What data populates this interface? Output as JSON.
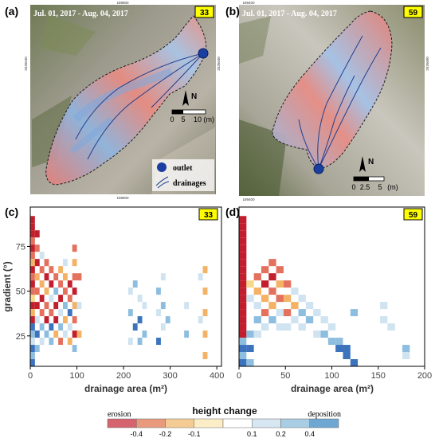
{
  "panels": {
    "a": {
      "letter": "(a)",
      "date": "Jul. 01, 2017 - Aug. 04, 2017",
      "badge": "33",
      "coord_top": "189800",
      "coord_bottom": "189800",
      "coord_left": "2535640",
      "coord_right": "2535640",
      "north": "N",
      "scale_ticks": [
        "0",
        "5",
        "10 (m)"
      ],
      "legend": {
        "outlet": "outlet",
        "drainages": "drainages"
      }
    },
    "b": {
      "letter": "(b)",
      "date": "Jul. 01, 2017 - Aug. 04, 2017",
      "badge": "59",
      "coord_top": "189400",
      "coord_bottom": "189400",
      "coord_right": "2535600",
      "north": "N",
      "scale_ticks": [
        "0",
        "2.5",
        "5",
        "(m)"
      ]
    }
  },
  "colors": {
    "badge_fill": "#ffff00",
    "outlet": "#1a3fa0",
    "erosion_dark": "#b2182b",
    "deposition_dark": "#2166ac"
  },
  "colorbar": {
    "title": "height change",
    "left_label": "erosion",
    "right_label": "deposition",
    "ticks": [
      "-0.4",
      "-0.2",
      "-0.1",
      "0.1",
      "0.2",
      "0.4"
    ],
    "bins": [
      {
        "color": "#d6646e"
      },
      {
        "color": "#e99a7d"
      },
      {
        "color": "#f4cc93"
      },
      {
        "color": "#fbeec7"
      },
      {
        "color": "#ffffff"
      },
      {
        "color": "#d6e7f2"
      },
      {
        "color": "#a9cde3"
      },
      {
        "color": "#6fa7d3"
      }
    ]
  },
  "chart_data": [
    {
      "type": "heatmap",
      "panel": "(c)",
      "badge": "33",
      "xlabel": "drainage area (m²)",
      "ylabel": "gradient (°)",
      "xlim": [
        0,
        410
      ],
      "ylim": [
        8,
        97
      ],
      "xticks": [
        "0",
        "100",
        "200",
        "300",
        "400"
      ],
      "yticks": [
        "25",
        "50",
        "75"
      ],
      "bin_width": 10,
      "bin_height": 4,
      "cells": [
        {
          "x": 0,
          "y": 88,
          "c": 0
        },
        {
          "x": 0,
          "y": 84,
          "c": 0
        },
        {
          "x": 0,
          "y": 80,
          "c": 0
        },
        {
          "x": 0,
          "y": 76,
          "c": 1
        },
        {
          "x": 0,
          "y": 72,
          "c": 0
        },
        {
          "x": 0,
          "y": 68,
          "c": 1
        },
        {
          "x": 0,
          "y": 64,
          "c": 2
        },
        {
          "x": 0,
          "y": 60,
          "c": 0
        },
        {
          "x": 0,
          "y": 56,
          "c": 1
        },
        {
          "x": 0,
          "y": 52,
          "c": 0
        },
        {
          "x": 0,
          "y": 48,
          "c": 1
        },
        {
          "x": 0,
          "y": 44,
          "c": 3
        },
        {
          "x": 0,
          "y": 40,
          "c": 0
        },
        {
          "x": 0,
          "y": 36,
          "c": 2
        },
        {
          "x": 0,
          "y": 32,
          "c": 0
        },
        {
          "x": 0,
          "y": 28,
          "c": 7
        },
        {
          "x": 0,
          "y": 24,
          "c": 6
        },
        {
          "x": 0,
          "y": 20,
          "c": 5
        },
        {
          "x": 0,
          "y": 16,
          "c": 7
        },
        {
          "x": 0,
          "y": 12,
          "c": 6
        },
        {
          "x": 0,
          "y": 8,
          "c": 7
        },
        {
          "x": 10,
          "y": 80,
          "c": 0
        },
        {
          "x": 10,
          "y": 72,
          "c": 1
        },
        {
          "x": 10,
          "y": 64,
          "c": 0
        },
        {
          "x": 10,
          "y": 56,
          "c": 2
        },
        {
          "x": 10,
          "y": 48,
          "c": 1
        },
        {
          "x": 10,
          "y": 40,
          "c": 0
        },
        {
          "x": 10,
          "y": 32,
          "c": 5
        },
        {
          "x": 10,
          "y": 24,
          "c": 7
        },
        {
          "x": 10,
          "y": 16,
          "c": 6
        },
        {
          "x": 20,
          "y": 68,
          "c": 5
        },
        {
          "x": 20,
          "y": 60,
          "c": 1
        },
        {
          "x": 20,
          "y": 52,
          "c": 2
        },
        {
          "x": 20,
          "y": 44,
          "c": 0
        },
        {
          "x": 20,
          "y": 36,
          "c": 1
        },
        {
          "x": 20,
          "y": 28,
          "c": 6
        },
        {
          "x": 20,
          "y": 20,
          "c": 5
        },
        {
          "x": 30,
          "y": 64,
          "c": 1
        },
        {
          "x": 30,
          "y": 56,
          "c": 0
        },
        {
          "x": 30,
          "y": 48,
          "c": 2
        },
        {
          "x": 30,
          "y": 40,
          "c": 1
        },
        {
          "x": 30,
          "y": 32,
          "c": 0
        },
        {
          "x": 30,
          "y": 24,
          "c": 6
        },
        {
          "x": 40,
          "y": 60,
          "c": 1
        },
        {
          "x": 40,
          "y": 52,
          "c": 0
        },
        {
          "x": 40,
          "y": 44,
          "c": 5
        },
        {
          "x": 40,
          "y": 36,
          "c": 1
        },
        {
          "x": 40,
          "y": 28,
          "c": 7
        },
        {
          "x": 40,
          "y": 20,
          "c": 6
        },
        {
          "x": 50,
          "y": 56,
          "c": 1
        },
        {
          "x": 50,
          "y": 48,
          "c": 6
        },
        {
          "x": 50,
          "y": 40,
          "c": 0
        },
        {
          "x": 50,
          "y": 32,
          "c": 0
        },
        {
          "x": 50,
          "y": 24,
          "c": 2
        },
        {
          "x": 60,
          "y": 60,
          "c": 2
        },
        {
          "x": 60,
          "y": 52,
          "c": 1
        },
        {
          "x": 60,
          "y": 44,
          "c": 0
        },
        {
          "x": 60,
          "y": 36,
          "c": 5
        },
        {
          "x": 60,
          "y": 28,
          "c": 6
        },
        {
          "x": 60,
          "y": 20,
          "c": 1
        },
        {
          "x": 70,
          "y": 64,
          "c": 5
        },
        {
          "x": 70,
          "y": 56,
          "c": 2
        },
        {
          "x": 70,
          "y": 48,
          "c": 1
        },
        {
          "x": 70,
          "y": 40,
          "c": 6
        },
        {
          "x": 70,
          "y": 32,
          "c": 2
        },
        {
          "x": 70,
          "y": 24,
          "c": 5
        },
        {
          "x": 80,
          "y": 52,
          "c": 0
        },
        {
          "x": 80,
          "y": 44,
          "c": 1
        },
        {
          "x": 80,
          "y": 36,
          "c": 7
        },
        {
          "x": 80,
          "y": 28,
          "c": 5
        },
        {
          "x": 80,
          "y": 20,
          "c": 2
        },
        {
          "x": 90,
          "y": 72,
          "c": 1
        },
        {
          "x": 90,
          "y": 64,
          "c": 2
        },
        {
          "x": 90,
          "y": 56,
          "c": 1
        },
        {
          "x": 90,
          "y": 48,
          "c": 0
        },
        {
          "x": 90,
          "y": 40,
          "c": 2
        },
        {
          "x": 90,
          "y": 32,
          "c": 1
        },
        {
          "x": 90,
          "y": 24,
          "c": 0
        },
        {
          "x": 90,
          "y": 16,
          "c": 6
        },
        {
          "x": 100,
          "y": 56,
          "c": 1
        },
        {
          "x": 100,
          "y": 40,
          "c": 5
        },
        {
          "x": 100,
          "y": 24,
          "c": 2
        },
        {
          "x": 210,
          "y": 48,
          "c": 5
        },
        {
          "x": 210,
          "y": 36,
          "c": 6
        },
        {
          "x": 210,
          "y": 20,
          "c": 5
        },
        {
          "x": 220,
          "y": 52,
          "c": 6
        },
        {
          "x": 220,
          "y": 28,
          "c": 7
        },
        {
          "x": 230,
          "y": 44,
          "c": 5
        },
        {
          "x": 230,
          "y": 32,
          "c": 7
        },
        {
          "x": 230,
          "y": 20,
          "c": 6
        },
        {
          "x": 240,
          "y": 40,
          "c": 5
        },
        {
          "x": 240,
          "y": 24,
          "c": 6
        },
        {
          "x": 270,
          "y": 48,
          "c": 6
        },
        {
          "x": 270,
          "y": 36,
          "c": 5
        },
        {
          "x": 270,
          "y": 20,
          "c": 7
        },
        {
          "x": 280,
          "y": 56,
          "c": 5
        },
        {
          "x": 280,
          "y": 40,
          "c": 6
        },
        {
          "x": 280,
          "y": 28,
          "c": 5
        },
        {
          "x": 290,
          "y": 52,
          "c": 4
        },
        {
          "x": 290,
          "y": 32,
          "c": 6
        },
        {
          "x": 330,
          "y": 40,
          "c": 5
        },
        {
          "x": 330,
          "y": 24,
          "c": 6
        },
        {
          "x": 360,
          "y": 56,
          "c": 5
        },
        {
          "x": 360,
          "y": 32,
          "c": 5
        },
        {
          "x": 370,
          "y": 60,
          "c": 2
        },
        {
          "x": 370,
          "y": 48,
          "c": 2
        },
        {
          "x": 370,
          "y": 36,
          "c": 2
        },
        {
          "x": 370,
          "y": 24,
          "c": 2
        },
        {
          "x": 370,
          "y": 12,
          "c": 2
        }
      ]
    },
    {
      "type": "heatmap",
      "panel": "(d)",
      "badge": "59",
      "xlabel": "drainage area (m²)",
      "ylabel": "",
      "xlim": [
        0,
        200
      ],
      "ylim": [
        8,
        97
      ],
      "xticks": [
        "0",
        "50",
        "100",
        "150",
        "200"
      ],
      "yticks": [],
      "bin_width": 8,
      "bin_height": 4,
      "cells": [
        {
          "x": 0,
          "y": 88,
          "c": 0
        },
        {
          "x": 0,
          "y": 84,
          "c": 0
        },
        {
          "x": 0,
          "y": 80,
          "c": 0
        },
        {
          "x": 0,
          "y": 76,
          "c": 0
        },
        {
          "x": 0,
          "y": 72,
          "c": 0
        },
        {
          "x": 0,
          "y": 68,
          "c": 0
        },
        {
          "x": 0,
          "y": 64,
          "c": 0
        },
        {
          "x": 0,
          "y": 60,
          "c": 0
        },
        {
          "x": 0,
          "y": 56,
          "c": 0
        },
        {
          "x": 0,
          "y": 52,
          "c": 0
        },
        {
          "x": 0,
          "y": 48,
          "c": 0
        },
        {
          "x": 0,
          "y": 44,
          "c": 0
        },
        {
          "x": 0,
          "y": 40,
          "c": 0
        },
        {
          "x": 0,
          "y": 36,
          "c": 0
        },
        {
          "x": 0,
          "y": 32,
          "c": 0
        },
        {
          "x": 0,
          "y": 28,
          "c": 0
        },
        {
          "x": 0,
          "y": 24,
          "c": 0
        },
        {
          "x": 0,
          "y": 20,
          "c": 6
        },
        {
          "x": 0,
          "y": 16,
          "c": 7
        },
        {
          "x": 0,
          "y": 12,
          "c": 6
        },
        {
          "x": 0,
          "y": 8,
          "c": 7
        },
        {
          "x": 8,
          "y": 24,
          "c": 6
        },
        {
          "x": 8,
          "y": 16,
          "c": 7
        },
        {
          "x": 8,
          "y": 8,
          "c": 6
        },
        {
          "x": 8,
          "y": 52,
          "c": 3
        },
        {
          "x": 8,
          "y": 44,
          "c": 5
        },
        {
          "x": 16,
          "y": 56,
          "c": 1
        },
        {
          "x": 16,
          "y": 48,
          "c": 2
        },
        {
          "x": 16,
          "y": 40,
          "c": 5
        },
        {
          "x": 16,
          "y": 32,
          "c": 6
        },
        {
          "x": 16,
          "y": 24,
          "c": 5
        },
        {
          "x": 24,
          "y": 60,
          "c": 1
        },
        {
          "x": 24,
          "y": 52,
          "c": 0
        },
        {
          "x": 24,
          "y": 44,
          "c": 2
        },
        {
          "x": 24,
          "y": 36,
          "c": 1
        },
        {
          "x": 24,
          "y": 28,
          "c": 5
        },
        {
          "x": 32,
          "y": 64,
          "c": 1
        },
        {
          "x": 32,
          "y": 56,
          "c": 0
        },
        {
          "x": 32,
          "y": 48,
          "c": 1
        },
        {
          "x": 32,
          "y": 40,
          "c": 2
        },
        {
          "x": 32,
          "y": 32,
          "c": 6
        },
        {
          "x": 40,
          "y": 60,
          "c": 1
        },
        {
          "x": 40,
          "y": 52,
          "c": 2
        },
        {
          "x": 40,
          "y": 44,
          "c": 1
        },
        {
          "x": 40,
          "y": 36,
          "c": 5
        },
        {
          "x": 40,
          "y": 28,
          "c": 5
        },
        {
          "x": 48,
          "y": 52,
          "c": 1
        },
        {
          "x": 48,
          "y": 44,
          "c": 2
        },
        {
          "x": 48,
          "y": 36,
          "c": 1
        },
        {
          "x": 48,
          "y": 28,
          "c": 5
        },
        {
          "x": 56,
          "y": 48,
          "c": 5
        },
        {
          "x": 56,
          "y": 40,
          "c": 2
        },
        {
          "x": 56,
          "y": 32,
          "c": 5
        },
        {
          "x": 64,
          "y": 44,
          "c": 5
        },
        {
          "x": 64,
          "y": 36,
          "c": 6
        },
        {
          "x": 64,
          "y": 28,
          "c": 5
        },
        {
          "x": 72,
          "y": 40,
          "c": 5
        },
        {
          "x": 72,
          "y": 32,
          "c": 6
        },
        {
          "x": 80,
          "y": 36,
          "c": 5
        },
        {
          "x": 80,
          "y": 24,
          "c": 5
        },
        {
          "x": 88,
          "y": 32,
          "c": 5
        },
        {
          "x": 88,
          "y": 24,
          "c": 6
        },
        {
          "x": 96,
          "y": 28,
          "c": 5
        },
        {
          "x": 96,
          "y": 20,
          "c": 6
        },
        {
          "x": 104,
          "y": 20,
          "c": 6
        },
        {
          "x": 104,
          "y": 16,
          "c": 7
        },
        {
          "x": 112,
          "y": 16,
          "c": 7
        },
        {
          "x": 112,
          "y": 12,
          "c": 7
        },
        {
          "x": 120,
          "y": 36,
          "c": 6
        },
        {
          "x": 120,
          "y": 8,
          "c": 7
        },
        {
          "x": 152,
          "y": 40,
          "c": 5
        },
        {
          "x": 152,
          "y": 32,
          "c": 5
        },
        {
          "x": 160,
          "y": 36,
          "c": 4
        },
        {
          "x": 160,
          "y": 28,
          "c": 5
        },
        {
          "x": 176,
          "y": 16,
          "c": 6
        },
        {
          "x": 176,
          "y": 12,
          "c": 5
        }
      ]
    }
  ]
}
